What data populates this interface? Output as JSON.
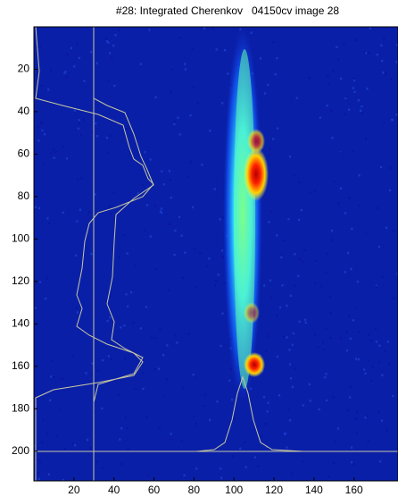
{
  "chart_data": {
    "type": "image",
    "title": "#28: Integrated Cherenkov   04150cv image 28",
    "xlim": [
      0,
      182
    ],
    "ylim": [
      0,
      214
    ],
    "xticks": [
      20,
      40,
      60,
      80,
      100,
      120,
      140,
      160
    ],
    "yticks": [
      20,
      40,
      60,
      80,
      100,
      120,
      140,
      160,
      180,
      200
    ]
  }
}
